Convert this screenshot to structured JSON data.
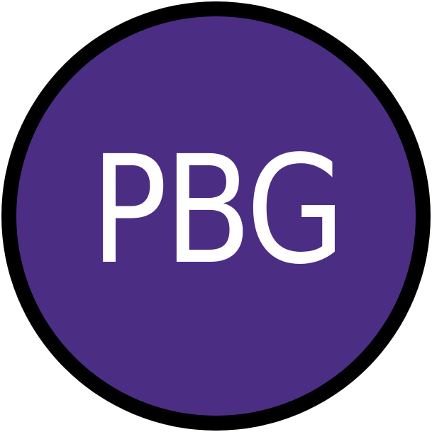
{
  "badge": {
    "text": "PBG",
    "colors": {
      "ring": "#000000",
      "fill": "#4b2e83",
      "text": "#ffffff"
    }
  }
}
